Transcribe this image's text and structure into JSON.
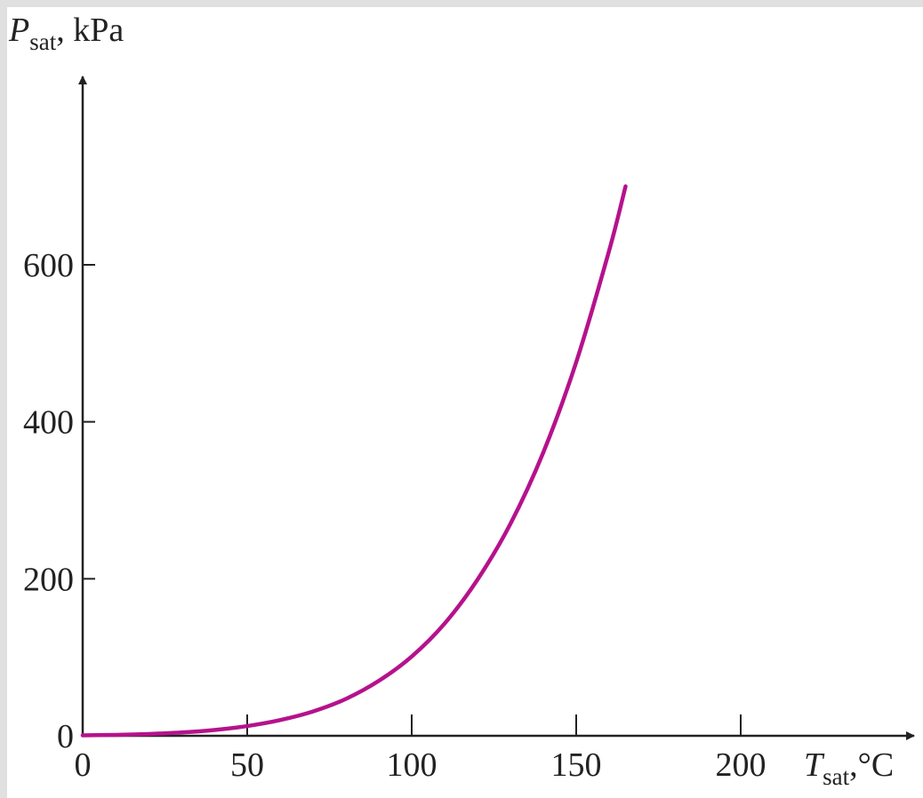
{
  "chart_data": {
    "type": "line",
    "title": "",
    "xlabel": {
      "symbol": "T",
      "subscript": "sat",
      "unit": ",°C"
    },
    "ylabel": {
      "symbol": "P",
      "subscript": "sat",
      "unit": ", kPa"
    },
    "xlim": [
      0,
      200
    ],
    "ylim": [
      0,
      600
    ],
    "xticks": [
      0,
      50,
      100,
      150,
      200
    ],
    "yticks": [
      0,
      200,
      400,
      600
    ],
    "xtick_labels": [
      "0",
      "50",
      "100",
      "150",
      "200"
    ],
    "ytick_labels": [
      "0",
      "200",
      "400",
      "600"
    ],
    "grid": false,
    "legend": "none",
    "series": [
      {
        "color": "#b5128c",
        "x": [
          0,
          10,
          20,
          30,
          40,
          50,
          60,
          70,
          80,
          90,
          100,
          110,
          120,
          130,
          140,
          150,
          160,
          165
        ],
        "y": [
          0.6,
          1.2,
          2.3,
          4.2,
          7.4,
          12.4,
          20,
          31,
          47,
          70,
          101,
          143,
          199,
          270,
          361,
          476,
          618,
          700
        ]
      }
    ]
  }
}
